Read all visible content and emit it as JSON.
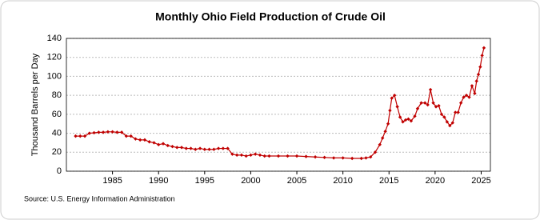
{
  "chart_data": {
    "type": "line",
    "title": "Monthly Ohio Field Production of Crude Oil",
    "ylabel": "Thousand Barrels per Day",
    "source": "Source: U.S. Energy Information Administration",
    "color": "#c00000",
    "x": [
      1981,
      1981.5,
      1982,
      1982.5,
      1983,
      1983.5,
      1984,
      1984.5,
      1985,
      1985.5,
      1986,
      1986.5,
      1987,
      1987.5,
      1988,
      1988.5,
      1989,
      1989.5,
      1990,
      1990.5,
      1991,
      1991.5,
      1992,
      1992.5,
      1993,
      1993.5,
      1994,
      1994.5,
      1995,
      1995.5,
      1996,
      1996.5,
      1997,
      1997.5,
      1998,
      1998.5,
      1999,
      1999.5,
      2000,
      2000.5,
      2001,
      2001.5,
      2002,
      2003,
      2004,
      2005,
      2006,
      2007,
      2008,
      2009,
      2010,
      2011,
      2012,
      2012.5,
      2013,
      2013.5,
      2014,
      2014.3,
      2014.6,
      2014.9,
      2015.1,
      2015.3,
      2015.6,
      2015.9,
      2016.2,
      2016.5,
      2016.8,
      2017.1,
      2017.4,
      2017.8,
      2018.1,
      2018.5,
      2018.9,
      2019.2,
      2019.5,
      2019.8,
      2020.1,
      2020.4,
      2020.7,
      2021,
      2021.3,
      2021.6,
      2021.9,
      2022.2,
      2022.5,
      2022.8,
      2023.1,
      2023.4,
      2023.7,
      2024,
      2024.3,
      2024.5,
      2024.7,
      2024.9,
      2025.1,
      2025.3
    ],
    "values": [
      37,
      37,
      37,
      40,
      40.5,
      41,
      41,
      41.5,
      41.5,
      41,
      41,
      37,
      37,
      34,
      33,
      33,
      31,
      30,
      28,
      29,
      27,
      26,
      25,
      25,
      24,
      24,
      23,
      24,
      23,
      23,
      23,
      24,
      24,
      24,
      18,
      17,
      17,
      16,
      17,
      18,
      17,
      16,
      16,
      16,
      16,
      16,
      15.5,
      15,
      14.5,
      14,
      14,
      13.5,
      13.5,
      14,
      15,
      20,
      28,
      35,
      42,
      50,
      64,
      77,
      80,
      68,
      57,
      52,
      54,
      55,
      53,
      58,
      66,
      72,
      72,
      70,
      86,
      72,
      68,
      69,
      60,
      57,
      52,
      48,
      51,
      62,
      62,
      72,
      78,
      80,
      78,
      90,
      82,
      95,
      102,
      110,
      122,
      130
    ],
    "xlim": [
      1980,
      2026
    ],
    "xticks": [
      1985,
      1990,
      1995,
      2000,
      2005,
      2010,
      2015,
      2020,
      2025
    ],
    "ylim": [
      0,
      140
    ],
    "yticks": [
      0,
      20,
      40,
      60,
      80,
      100,
      120,
      140
    ],
    "grid": true
  }
}
